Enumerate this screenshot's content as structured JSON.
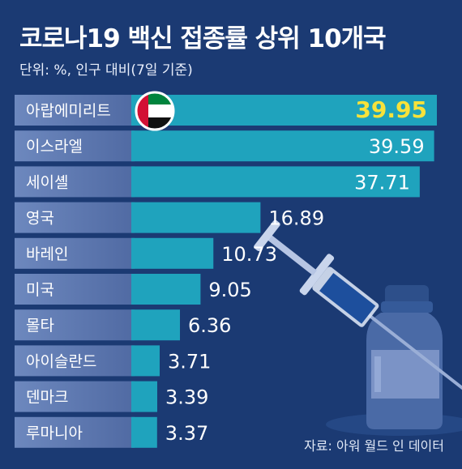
{
  "title": "코로나19 백신 접종률 상위 10개국",
  "subtitle": "단위: %, 인구 대비(7일 기준)",
  "source": "자료: 아워 월드 인 데이터",
  "colors": {
    "background": "#1b3a73",
    "bar": "#1fa3bd",
    "label_panel": "#5f7bb3",
    "top_value": "#f7e23a",
    "value": "#ffffff"
  },
  "chart_data": {
    "type": "bar",
    "orientation": "horizontal",
    "title": "코로나19 백신 접종률 상위 10개국",
    "categories": [
      "아랍에미리트",
      "이스라엘",
      "세이셸",
      "영국",
      "바레인",
      "미국",
      "몰타",
      "아이슬란드",
      "덴마크",
      "루마니아"
    ],
    "values": [
      39.95,
      39.59,
      37.71,
      16.89,
      10.73,
      9.05,
      6.36,
      3.71,
      3.39,
      3.37
    ],
    "value_labels": [
      "39.95",
      "39.59",
      "37.71",
      "16.89",
      "10.73",
      "9.05",
      "6.36",
      "3.71",
      "3.39",
      "3.37"
    ],
    "highlight_index": 0,
    "highlight_icon": "uae-flag-icon",
    "grid": false,
    "legend": "none"
  }
}
